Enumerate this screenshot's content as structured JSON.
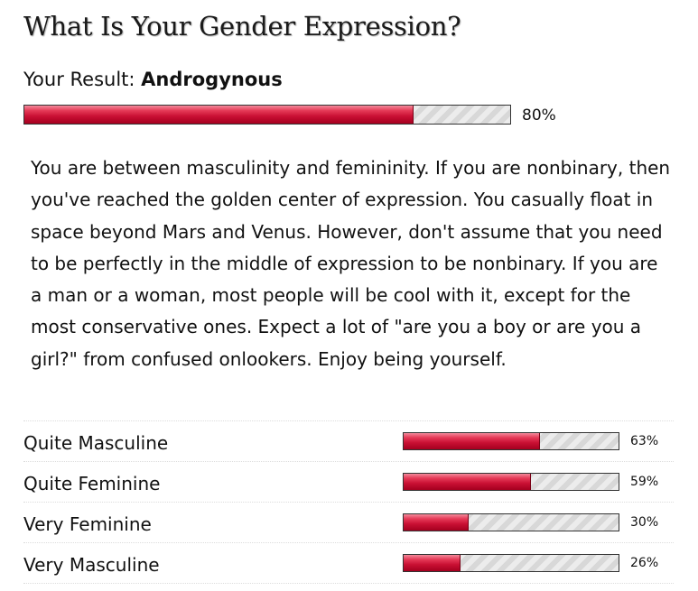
{
  "quiz": {
    "title": "What Is Your Gender Expression?",
    "result_prefix": "Your Result:",
    "result_name": "Androgynous",
    "result_percent": 80,
    "result_percent_label": "80%",
    "description": "You are between masculinity and femininity. If you are nonbinary, then you've reached the golden center of expression. You casually float in space beyond Mars and Venus. However, don't assume that you need to be perfectly in the middle of expression to be nonbinary. If you are a man or a woman, most people will be cool with it, except for the most conservative ones. Expect a lot of \"are you a boy or are you a girl?\" from confused onlookers. Enjoy be­ing yourself."
  },
  "other_results": [
    {
      "label": "Quite Masculine",
      "percent": 63,
      "percent_label": "63%"
    },
    {
      "label": "Quite Feminine",
      "percent": 59,
      "percent_label": "59%"
    },
    {
      "label": "Very Feminine",
      "percent": 30,
      "percent_label": "30%"
    },
    {
      "label": "Very Masculine",
      "percent": 26,
      "percent_label": "26%"
    }
  ],
  "colors": {
    "bar_fill": "#c90f33",
    "bar_track": "#e4e4e4",
    "text": "#111111"
  }
}
